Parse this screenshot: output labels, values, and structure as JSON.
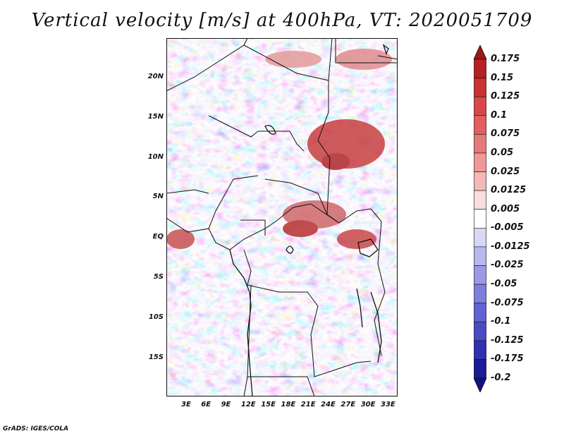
{
  "title": "Vertical velocity [m/s] at 400hPa, VT: 2020051709",
  "credit": "GrADS: IGES/COLA",
  "lat_ticks": [
    "20N",
    "15N",
    "10N",
    "5N",
    "EQ",
    "5S",
    "10S",
    "15S"
  ],
  "lon_ticks": [
    "3E",
    "6E",
    "9E",
    "12E",
    "15E",
    "18E",
    "21E",
    "24E",
    "27E",
    "30E",
    "33E"
  ],
  "colorbar": {
    "labels": [
      "0.175",
      "0.15",
      "0.125",
      "0.1",
      "0.075",
      "0.05",
      "0.025",
      "0.0125",
      "0.005",
      "-0.005",
      "-0.0125",
      "-0.025",
      "-0.05",
      "-0.075",
      "-0.1",
      "-0.125",
      "-0.175",
      "-0.2"
    ],
    "colors": [
      "#a01818",
      "#b42222",
      "#c83232",
      "#d84848",
      "#e06060",
      "#e67a7a",
      "#ee9898",
      "#f4b8b8",
      "#f9dede",
      "#ffffff",
      "#d8d8f6",
      "#b8b8ee",
      "#9a9ae6",
      "#7e7ede",
      "#6262d2",
      "#4a4ac4",
      "#3030b0",
      "#1c1c96",
      "#120f80"
    ]
  }
}
